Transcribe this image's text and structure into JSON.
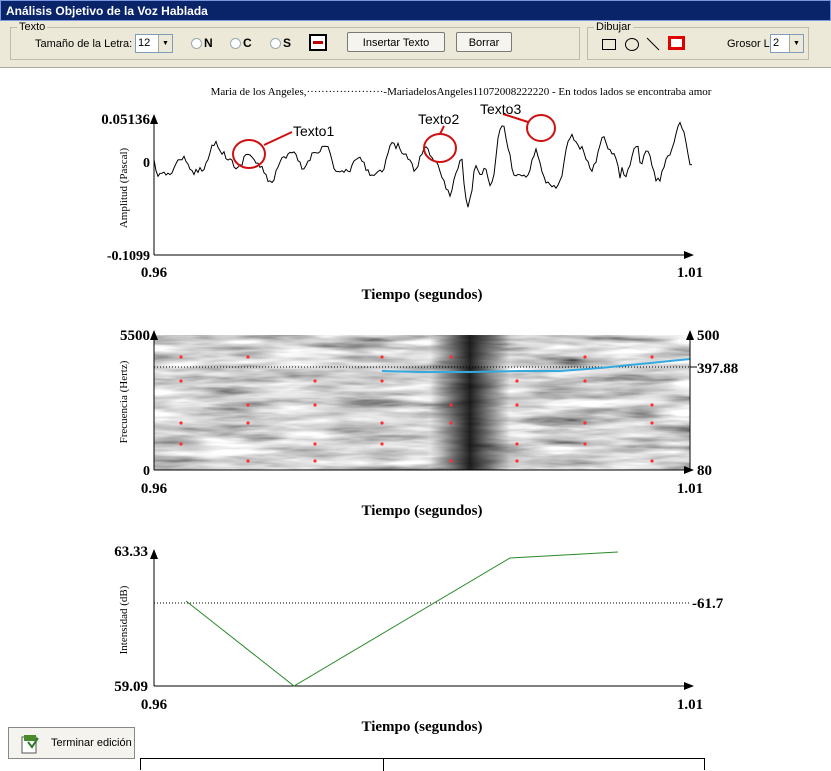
{
  "window": {
    "title": "Análisis Objetivo de la Voz Hablada"
  },
  "toolbar": {
    "texto": {
      "legend": "Texto",
      "size_label": "Tamaño de la Letra:",
      "size_value": "12",
      "bold": "N",
      "cursive": "C",
      "underline": "S",
      "insert": "Insertar Texto",
      "delete": "Borrar"
    },
    "dibujar": {
      "legend": "Dibujar",
      "thickness_label": "Grosor Linea:",
      "thickness_value": "2"
    }
  },
  "caption": "Maria de los Angeles,·····················-MariadelosAngeles11072008222220 - En todos lados se encontraba amor",
  "waveform": {
    "ylabel": "Amplitud (Pascal)",
    "xlabel": "Tiempo (segundos)",
    "y_max": "0.05136",
    "y_zero": "0",
    "y_min": "-0.1099",
    "x_min": "0.96",
    "x_max": "1.01",
    "annotations": [
      "Texto1",
      "Texto2",
      "Texto3"
    ]
  },
  "spectrogram": {
    "ylabel": "Frecuencia (Hertz)",
    "xlabel": "Tiempo (segundos)",
    "y_max": "5500",
    "y_min": "0",
    "right_max": "500",
    "right_mid": "397.88",
    "right_min": "80",
    "x_min": "0.96",
    "x_max": "1.01"
  },
  "intensity": {
    "ylabel": "Intensidad (dB)",
    "xlabel": "Tiempo (segundos)",
    "y_max": "63.33",
    "y_min": "59.09",
    "mean": "61.7",
    "x_min": "0.96",
    "x_max": "1.01"
  },
  "footer": {
    "finish_button": "Terminar edición"
  },
  "colors": {
    "titlebar": "#0a246a",
    "annotation": "#d01010",
    "pitch": "#35a8e0",
    "intensity": "#2a8a2a"
  }
}
